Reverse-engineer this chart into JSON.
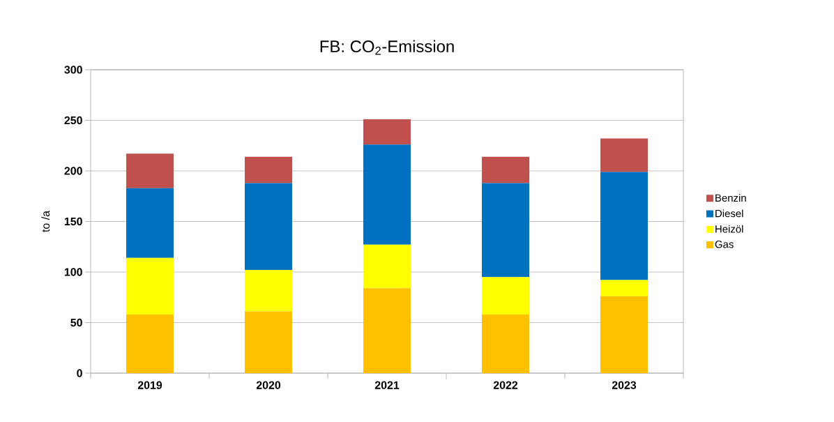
{
  "chart_data": {
    "type": "bar",
    "stacked": true,
    "title": "FB: CO$_{2}$-Emission",
    "ylabel": "to /a",
    "categories": [
      "2019",
      "2020",
      "2021",
      "2022",
      "2023"
    ],
    "series": [
      {
        "name": "Gas",
        "color": "#ffc000",
        "values": [
          58,
          61,
          84,
          58,
          76
        ]
      },
      {
        "name": "Heizöl",
        "color": "#ffff00",
        "values": [
          56,
          41,
          43,
          37,
          16
        ]
      },
      {
        "name": "Diesel",
        "color": "#0070c0",
        "values": [
          69,
          86,
          99,
          93,
          107
        ]
      },
      {
        "name": "Benzin",
        "color": "#c0504d",
        "values": [
          34,
          26,
          25,
          26,
          33
        ]
      }
    ],
    "ylim": [
      0,
      300
    ],
    "yticks": [
      0,
      50,
      100,
      150,
      200,
      250,
      300
    ],
    "grid": "y",
    "legend": "right"
  }
}
